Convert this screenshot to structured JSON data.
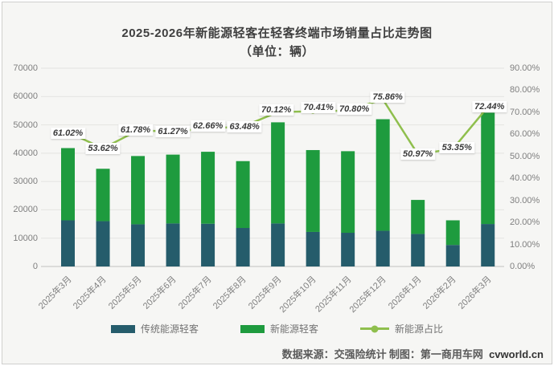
{
  "chart_data": {
    "type": "bar",
    "combo": "stacked-bar-with-line",
    "title": "2025-2026年新能源轻客在轻客终端市场销量占比走势图",
    "subtitle": "（单位：辆）",
    "categories": [
      "2025年3月",
      "2025年4月",
      "2025年5月",
      "2025年6月",
      "2025年7月",
      "2025年8月",
      "2025年9月",
      "2025年10月",
      "2025年11月",
      "2025年12月",
      "2026年1月",
      "2026年2月",
      "2026年3月"
    ],
    "series": [
      {
        "name": "传统能源轻客",
        "type": "bar",
        "stack": "total",
        "color": "#255c6b",
        "values": [
          16300,
          16000,
          14900,
          15200,
          15100,
          13600,
          15200,
          12200,
          11900,
          12600,
          11500,
          7600,
          15000
        ]
      },
      {
        "name": "新能源轻客",
        "type": "bar",
        "stack": "total",
        "color": "#1e9b3e",
        "values": [
          25500,
          18500,
          24100,
          24300,
          25400,
          23600,
          35700,
          28900,
          28800,
          39400,
          12000,
          8700,
          39300
        ]
      },
      {
        "name": "新能源占比",
        "type": "line",
        "axis": "right",
        "color": "#8fbf4d",
        "values": [
          61.02,
          53.62,
          61.78,
          61.27,
          62.66,
          63.48,
          70.12,
          70.41,
          70.8,
          75.86,
          50.97,
          53.35,
          72.44
        ],
        "labels": [
          "61.02%",
          "53.62%",
          "61.78%",
          "61.27%",
          "62.66%",
          "63.48%",
          "70.12%",
          "70.41%",
          "70.80%",
          "75.86%",
          "50.97%",
          "53.35%",
          "72.44%"
        ]
      }
    ],
    "left_axis": {
      "min": 0,
      "max": 70000,
      "step": 10000,
      "tick_labels": [
        "0",
        "10000",
        "20000",
        "30000",
        "40000",
        "50000",
        "60000",
        "70000"
      ]
    },
    "right_axis": {
      "min": 0,
      "max": 90,
      "step": 10,
      "tick_labels": [
        "0.00%",
        "10.00%",
        "20.00%",
        "30.00%",
        "40.00%",
        "50.00%",
        "60.00%",
        "70.00%",
        "80.00%",
        "90.00%"
      ]
    },
    "grid": true,
    "legend_position": "bottom",
    "colors": {
      "grid": "#e3e3e1",
      "baseline": "#c2c2c0",
      "axis_text": "#7f7f7f",
      "background": "#f6f6f4"
    }
  },
  "footer": {
    "source": "数据来源：交强险统计 制图：第一商用车网",
    "site": "cvworld.cn"
  }
}
